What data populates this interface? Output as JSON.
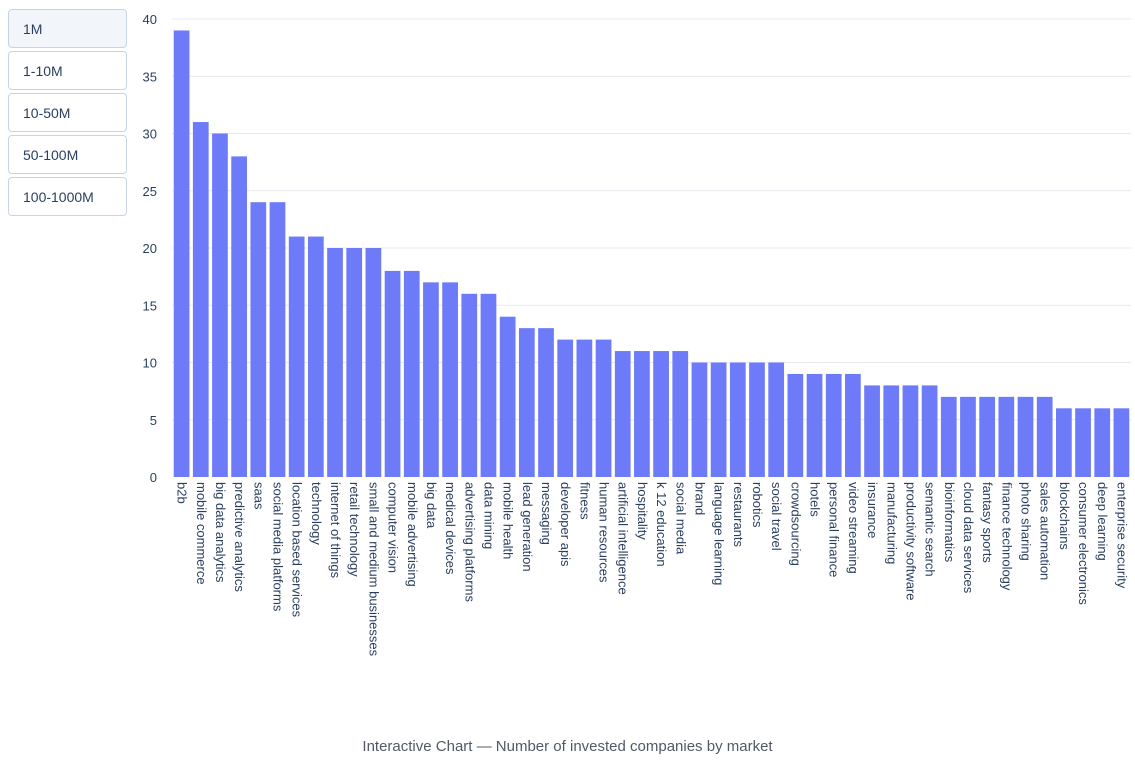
{
  "range_buttons": [
    {
      "label": "1M",
      "active": true
    },
    {
      "label": "1-10M",
      "active": false
    },
    {
      "label": "10-50M",
      "active": false
    },
    {
      "label": "50-100M",
      "active": false
    },
    {
      "label": "100-1000M",
      "active": false
    }
  ],
  "caption": "Interactive Chart — Number of invested companies by market",
  "colors": {
    "bar": "#6e7bf9",
    "grid": "#e6e9f0",
    "text": "#2a3f5f"
  },
  "chart_data": {
    "type": "bar",
    "ylim": [
      0,
      40
    ],
    "yticks": [
      0,
      5,
      10,
      15,
      20,
      25,
      30,
      35,
      40
    ],
    "grid": true,
    "categories": [
      "b2b",
      "mobile commerce",
      "big data analytics",
      "predictive analytics",
      "saas",
      "social media platforms",
      "location based services",
      "technology",
      "internet of things",
      "retail technology",
      "small and medium businesses",
      "computer vision",
      "mobile advertising",
      "big data",
      "medical devices",
      "advertising platforms",
      "data mining",
      "mobile health",
      "lead generation",
      "messaging",
      "developer apis",
      "fitness",
      "human resources",
      "artificial intelligence",
      "hospitality",
      "k 12 education",
      "social media",
      "brand",
      "language learning",
      "restaurants",
      "robotics",
      "social travel",
      "crowdsourcing",
      "hotels",
      "personal finance",
      "video streaming",
      "insurance",
      "manufacturing",
      "productivity software",
      "semantic search",
      "bioinformatics",
      "cloud data services",
      "fantasy sports",
      "finance technology",
      "photo sharing",
      "sales automation",
      "blockchains",
      "consumer electronics",
      "deep learning",
      "enterprise security"
    ],
    "values": [
      39,
      31,
      30,
      28,
      24,
      24,
      21,
      21,
      20,
      20,
      20,
      18,
      18,
      17,
      17,
      16,
      16,
      14,
      13,
      13,
      12,
      12,
      12,
      11,
      11,
      11,
      11,
      10,
      10,
      10,
      10,
      10,
      9,
      9,
      9,
      9,
      8,
      8,
      8,
      8,
      7,
      7,
      7,
      7,
      7,
      7,
      6,
      6,
      6,
      6
    ]
  }
}
